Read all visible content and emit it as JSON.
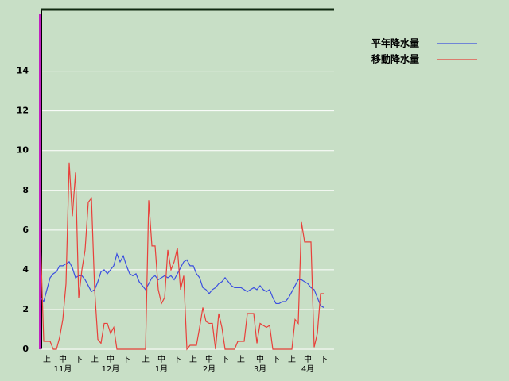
{
  "chart_data": {
    "type": "line",
    "categories": [
      null,
      null,
      "上",
      null,
      null,
      null,
      null,
      "中",
      null,
      null,
      null,
      null,
      "下",
      null,
      null,
      null,
      null,
      "上",
      null,
      null,
      null,
      null,
      "中",
      null,
      null,
      null,
      null,
      "下",
      null,
      null,
      null,
      null,
      null,
      "上",
      null,
      null,
      null,
      null,
      "中",
      null,
      null,
      null,
      null,
      "下",
      null,
      null,
      null,
      null,
      "上",
      null,
      null,
      null,
      null,
      "中",
      null,
      null,
      null,
      null,
      "下",
      null,
      null,
      null,
      null,
      "上",
      null,
      null,
      null,
      null,
      null,
      "中",
      null,
      null,
      null,
      null,
      "下",
      null,
      null,
      null,
      null,
      "上",
      null,
      null,
      null,
      null,
      "中",
      null,
      null,
      null,
      null,
      "下"
    ],
    "months": [
      "11月",
      "12月",
      "1月",
      "2月",
      "3月",
      "4月"
    ],
    "series": [
      {
        "name": "平年降水量",
        "color": "#3b4fe0",
        "values": [
          2.6,
          2.4,
          3.0,
          3.6,
          3.8,
          3.9,
          4.2,
          4.2,
          4.3,
          4.4,
          4.1,
          3.6,
          3.7,
          3.7,
          3.5,
          3.2,
          2.9,
          3.0,
          3.4,
          3.9,
          4.0,
          3.8,
          4.0,
          4.2,
          4.8,
          4.4,
          4.7,
          4.2,
          3.8,
          3.7,
          3.8,
          3.4,
          3.2,
          3.0,
          3.3,
          3.6,
          3.7,
          3.5,
          3.6,
          3.7,
          3.6,
          3.7,
          3.5,
          3.8,
          4.1,
          4.4,
          4.5,
          4.2,
          4.2,
          3.8,
          3.6,
          3.1,
          3.0,
          2.8,
          3.0,
          3.1,
          3.3,
          3.4,
          3.6,
          3.4,
          3.2,
          3.1,
          3.1,
          3.1,
          3.0,
          2.9,
          3.0,
          3.1,
          3.0,
          3.2,
          3.0,
          2.9,
          3.0,
          2.6,
          2.3,
          2.3,
          2.4,
          2.4,
          2.6,
          2.9,
          3.2,
          3.5,
          3.5,
          3.4,
          3.3,
          3.1,
          3.0,
          2.6,
          2.2,
          2.1
        ]
      },
      {
        "name": "移動降水量",
        "color": "#e8403a",
        "values": [
          5.4,
          0.4,
          0.4,
          0.4,
          0,
          0,
          0.6,
          1.5,
          3.3,
          9.4,
          6.7,
          8.9,
          2.6,
          4.0,
          5.0,
          7.4,
          7.6,
          3.0,
          0.5,
          0.3,
          1.3,
          1.3,
          0.8,
          1.1,
          0,
          0,
          0,
          0,
          0,
          0,
          0,
          0,
          0,
          0,
          7.5,
          5.2,
          5.2,
          3.0,
          2.3,
          2.6,
          5.0,
          4.0,
          4.4,
          5.1,
          3.0,
          3.7,
          0,
          0.2,
          0.2,
          0.2,
          1.1,
          2.1,
          1.4,
          1.3,
          1.3,
          0,
          1.8,
          1.1,
          0,
          0,
          0,
          0,
          0.4,
          0.4,
          0.4,
          1.8,
          1.8,
          1.8,
          0.3,
          1.3,
          1.2,
          1.1,
          1.2,
          0,
          0,
          0,
          0,
          0,
          0,
          0,
          1.5,
          1.3,
          6.4,
          5.4,
          5.4,
          5.4,
          0.1,
          0.8,
          2.8,
          2.8
        ]
      }
    ],
    "ylim": [
      0,
      17.1
    ],
    "yticks": [
      0,
      2,
      4,
      6,
      8,
      10,
      12,
      14
    ],
    "grid": true
  }
}
